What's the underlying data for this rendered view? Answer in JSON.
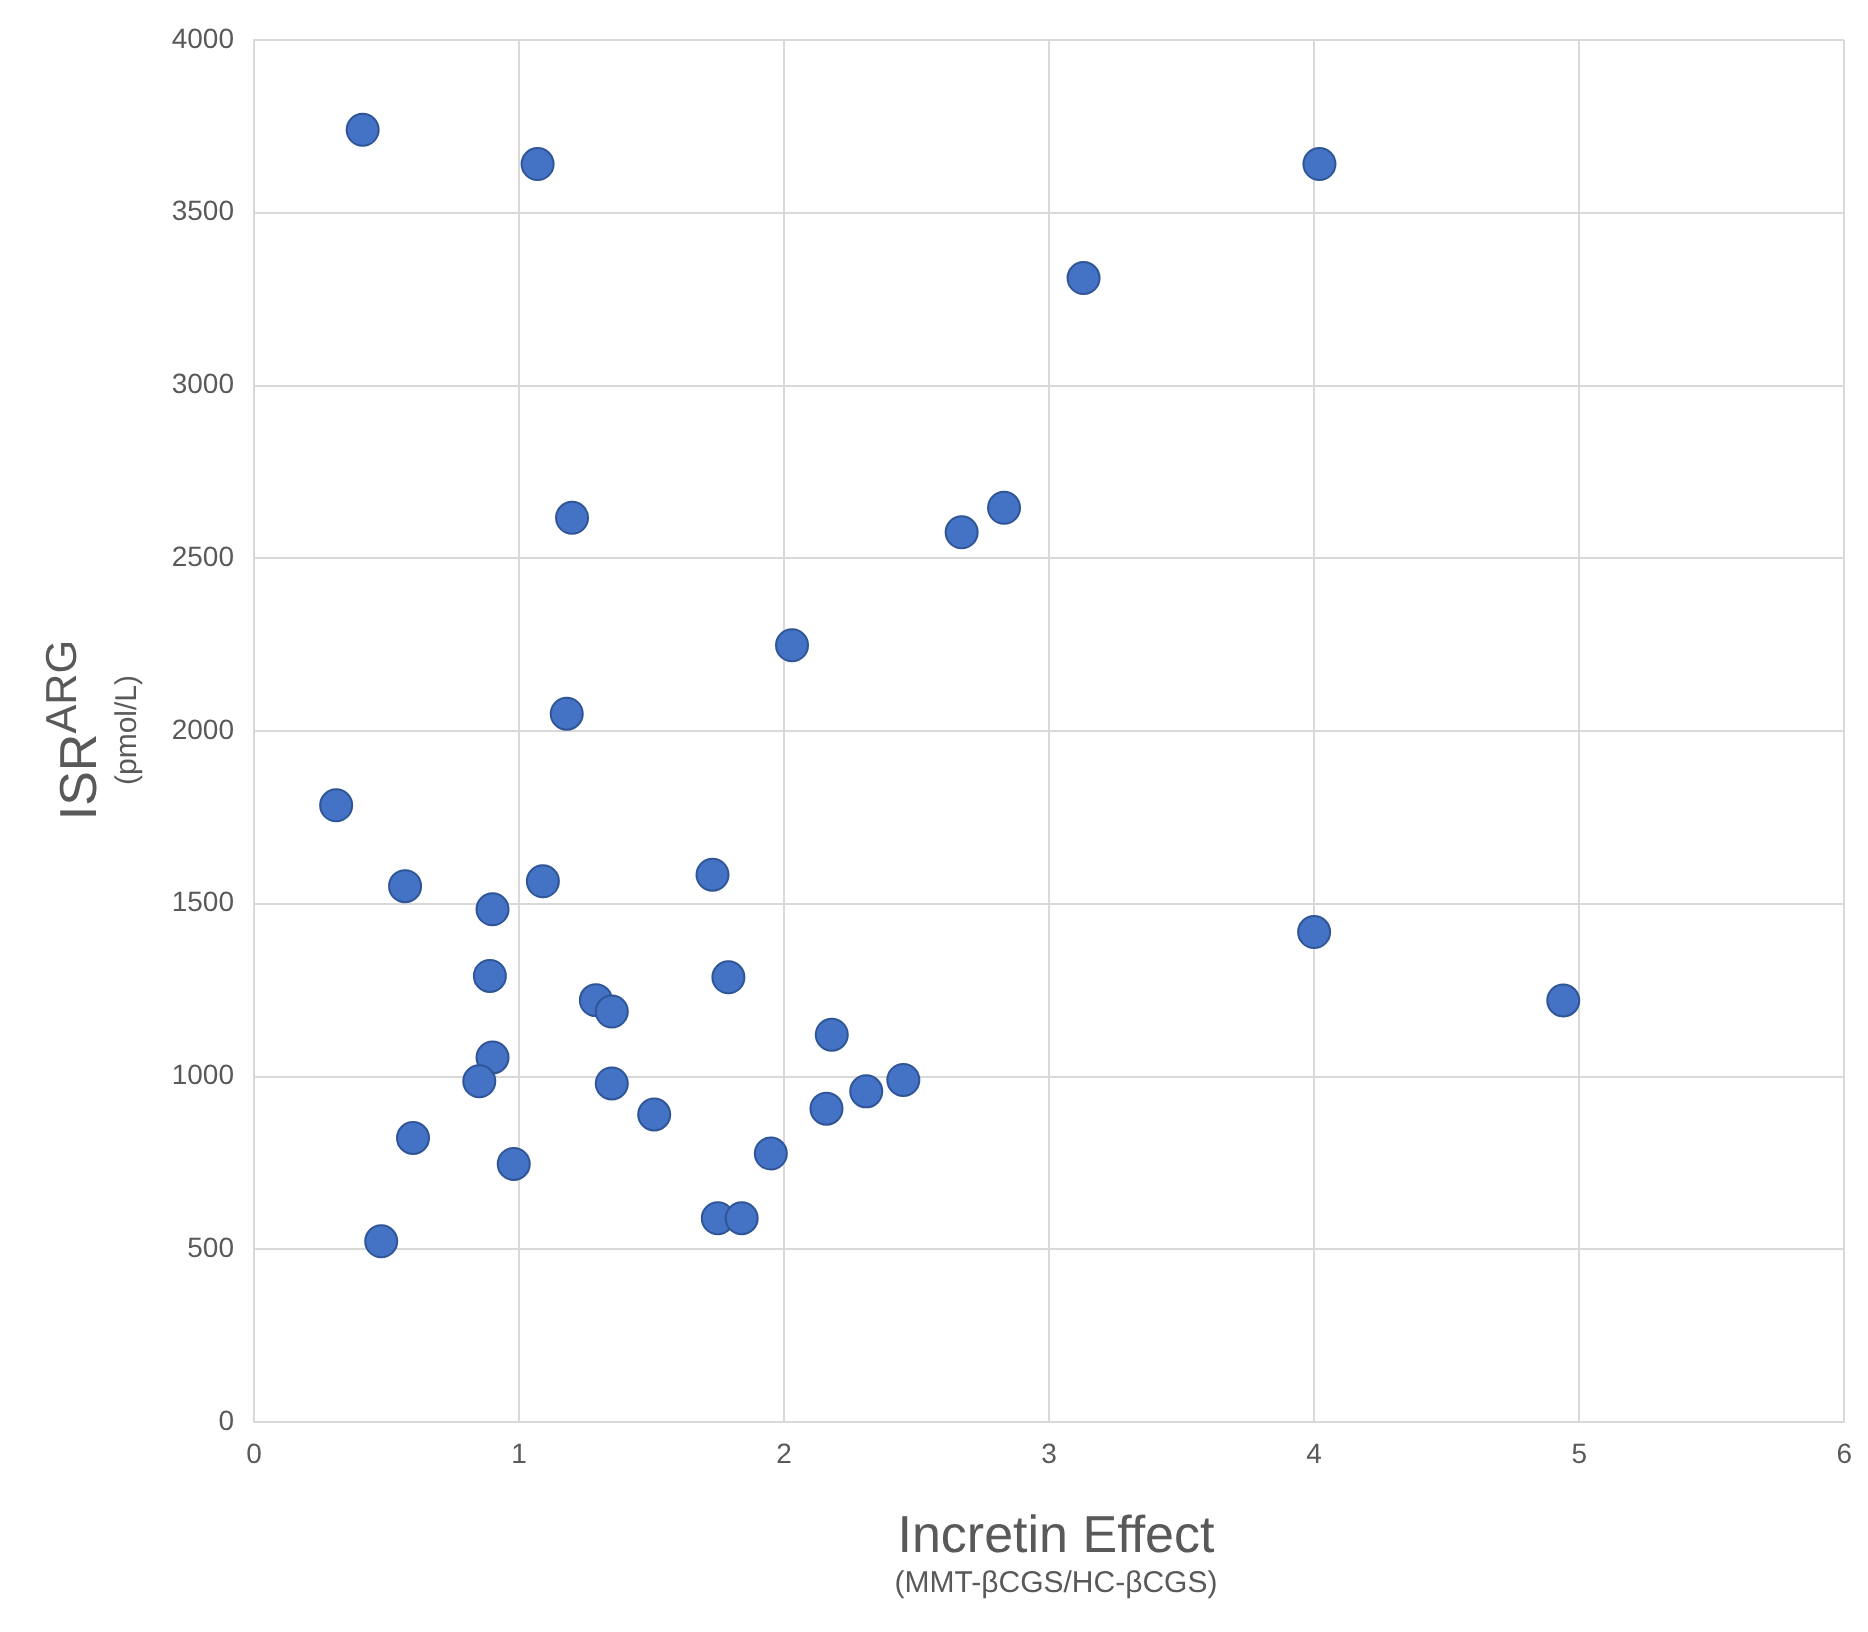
{
  "chart_data": {
    "type": "scatter",
    "xlabel": "Incretin Effect\n(MMT-βCGS/HC-βCGS)",
    "ylabel": "ISR$^{ARG}$\n(pmol/L)",
    "xlim": [
      0,
      6
    ],
    "xticks": [
      0,
      1,
      2,
      3,
      4,
      5,
      6
    ],
    "ylim": [
      0,
      4000
    ],
    "yticks": [
      0,
      500,
      1000,
      1500,
      2000,
      2500,
      3000,
      3500,
      4000
    ],
    "grid": true,
    "legend": false,
    "marker": "circle",
    "series": [
      {
        "color": "#4472c4",
        "x": [
          0.41,
          1.07,
          4.02,
          3.13,
          2.83,
          2.67,
          1.2,
          2.03,
          1.18,
          0.31,
          0.57,
          0.9,
          1.09,
          1.73,
          0.89,
          1.79,
          1.29,
          1.35,
          2.18,
          0.9,
          0.85,
          1.35,
          2.45,
          2.31,
          2.16,
          1.51,
          0.6,
          1.95,
          0.98,
          1.75,
          1.84,
          0.48,
          4.0,
          4.94
        ],
        "values": [
          3740,
          3641,
          3641,
          3311,
          2646,
          2575,
          2617,
          2248,
          2050,
          1785,
          1551,
          1484,
          1565,
          1584,
          1291,
          1287,
          1221,
          1188,
          1121,
          1055,
          986,
          980,
          990,
          957,
          907,
          890,
          822,
          777,
          747,
          590,
          590,
          523,
          1418,
          1220
        ]
      }
    ]
  }
}
